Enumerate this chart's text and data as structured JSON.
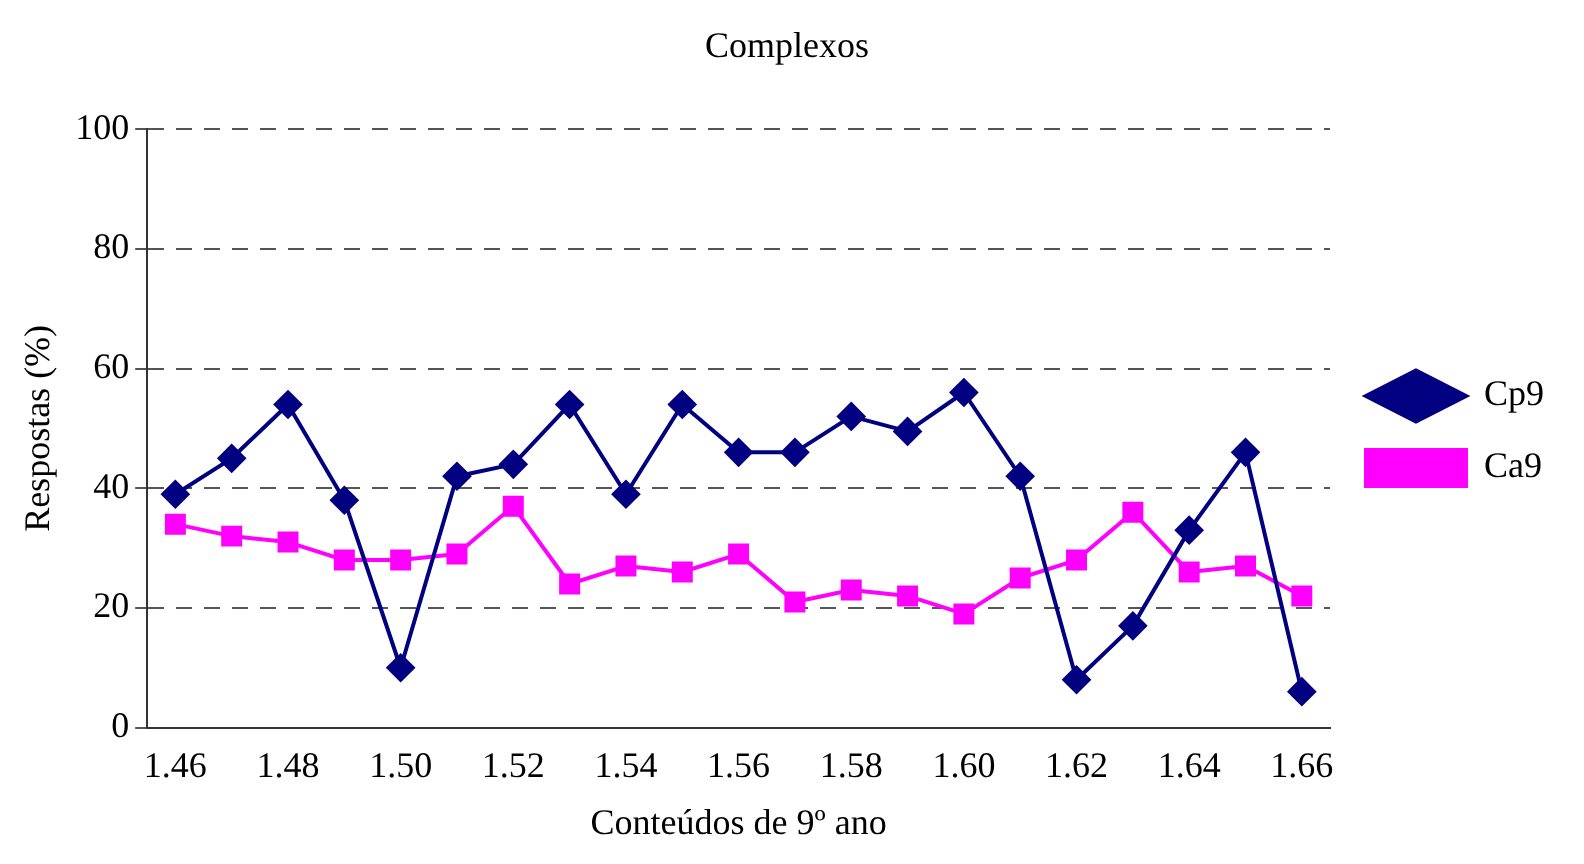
{
  "chart_data": {
    "type": "line",
    "title": "Complexos",
    "xlabel": "Conteúdos de 9º ano",
    "ylabel": "Respostas (%)",
    "categories": [
      "1.46",
      null,
      "1.48",
      null,
      "1.50",
      null,
      "1.52",
      null,
      "1.54",
      null,
      "1.56",
      null,
      "1.58",
      null,
      "1.60",
      null,
      "1.62",
      null,
      "1.64",
      null,
      "1.66"
    ],
    "series": [
      {
        "name": "Cp9",
        "color": "#000080",
        "marker": "diamond",
        "values": [
          39,
          45,
          54,
          38,
          10,
          42,
          44,
          54,
          39,
          54,
          46,
          46,
          52,
          49.5,
          56,
          42,
          8,
          17,
          33,
          46,
          6
        ]
      },
      {
        "name": "Ca9",
        "color": "#ff00ff",
        "marker": "square",
        "values": [
          34,
          32,
          31,
          28,
          28,
          29,
          37,
          24,
          27,
          26,
          29,
          21,
          23,
          22,
          19,
          25,
          28,
          36,
          26,
          27,
          22
        ]
      }
    ],
    "ylim": [
      0,
      100
    ],
    "yticks": [
      0,
      20,
      40,
      60,
      80,
      100
    ],
    "grid": "y",
    "legend": "right"
  }
}
